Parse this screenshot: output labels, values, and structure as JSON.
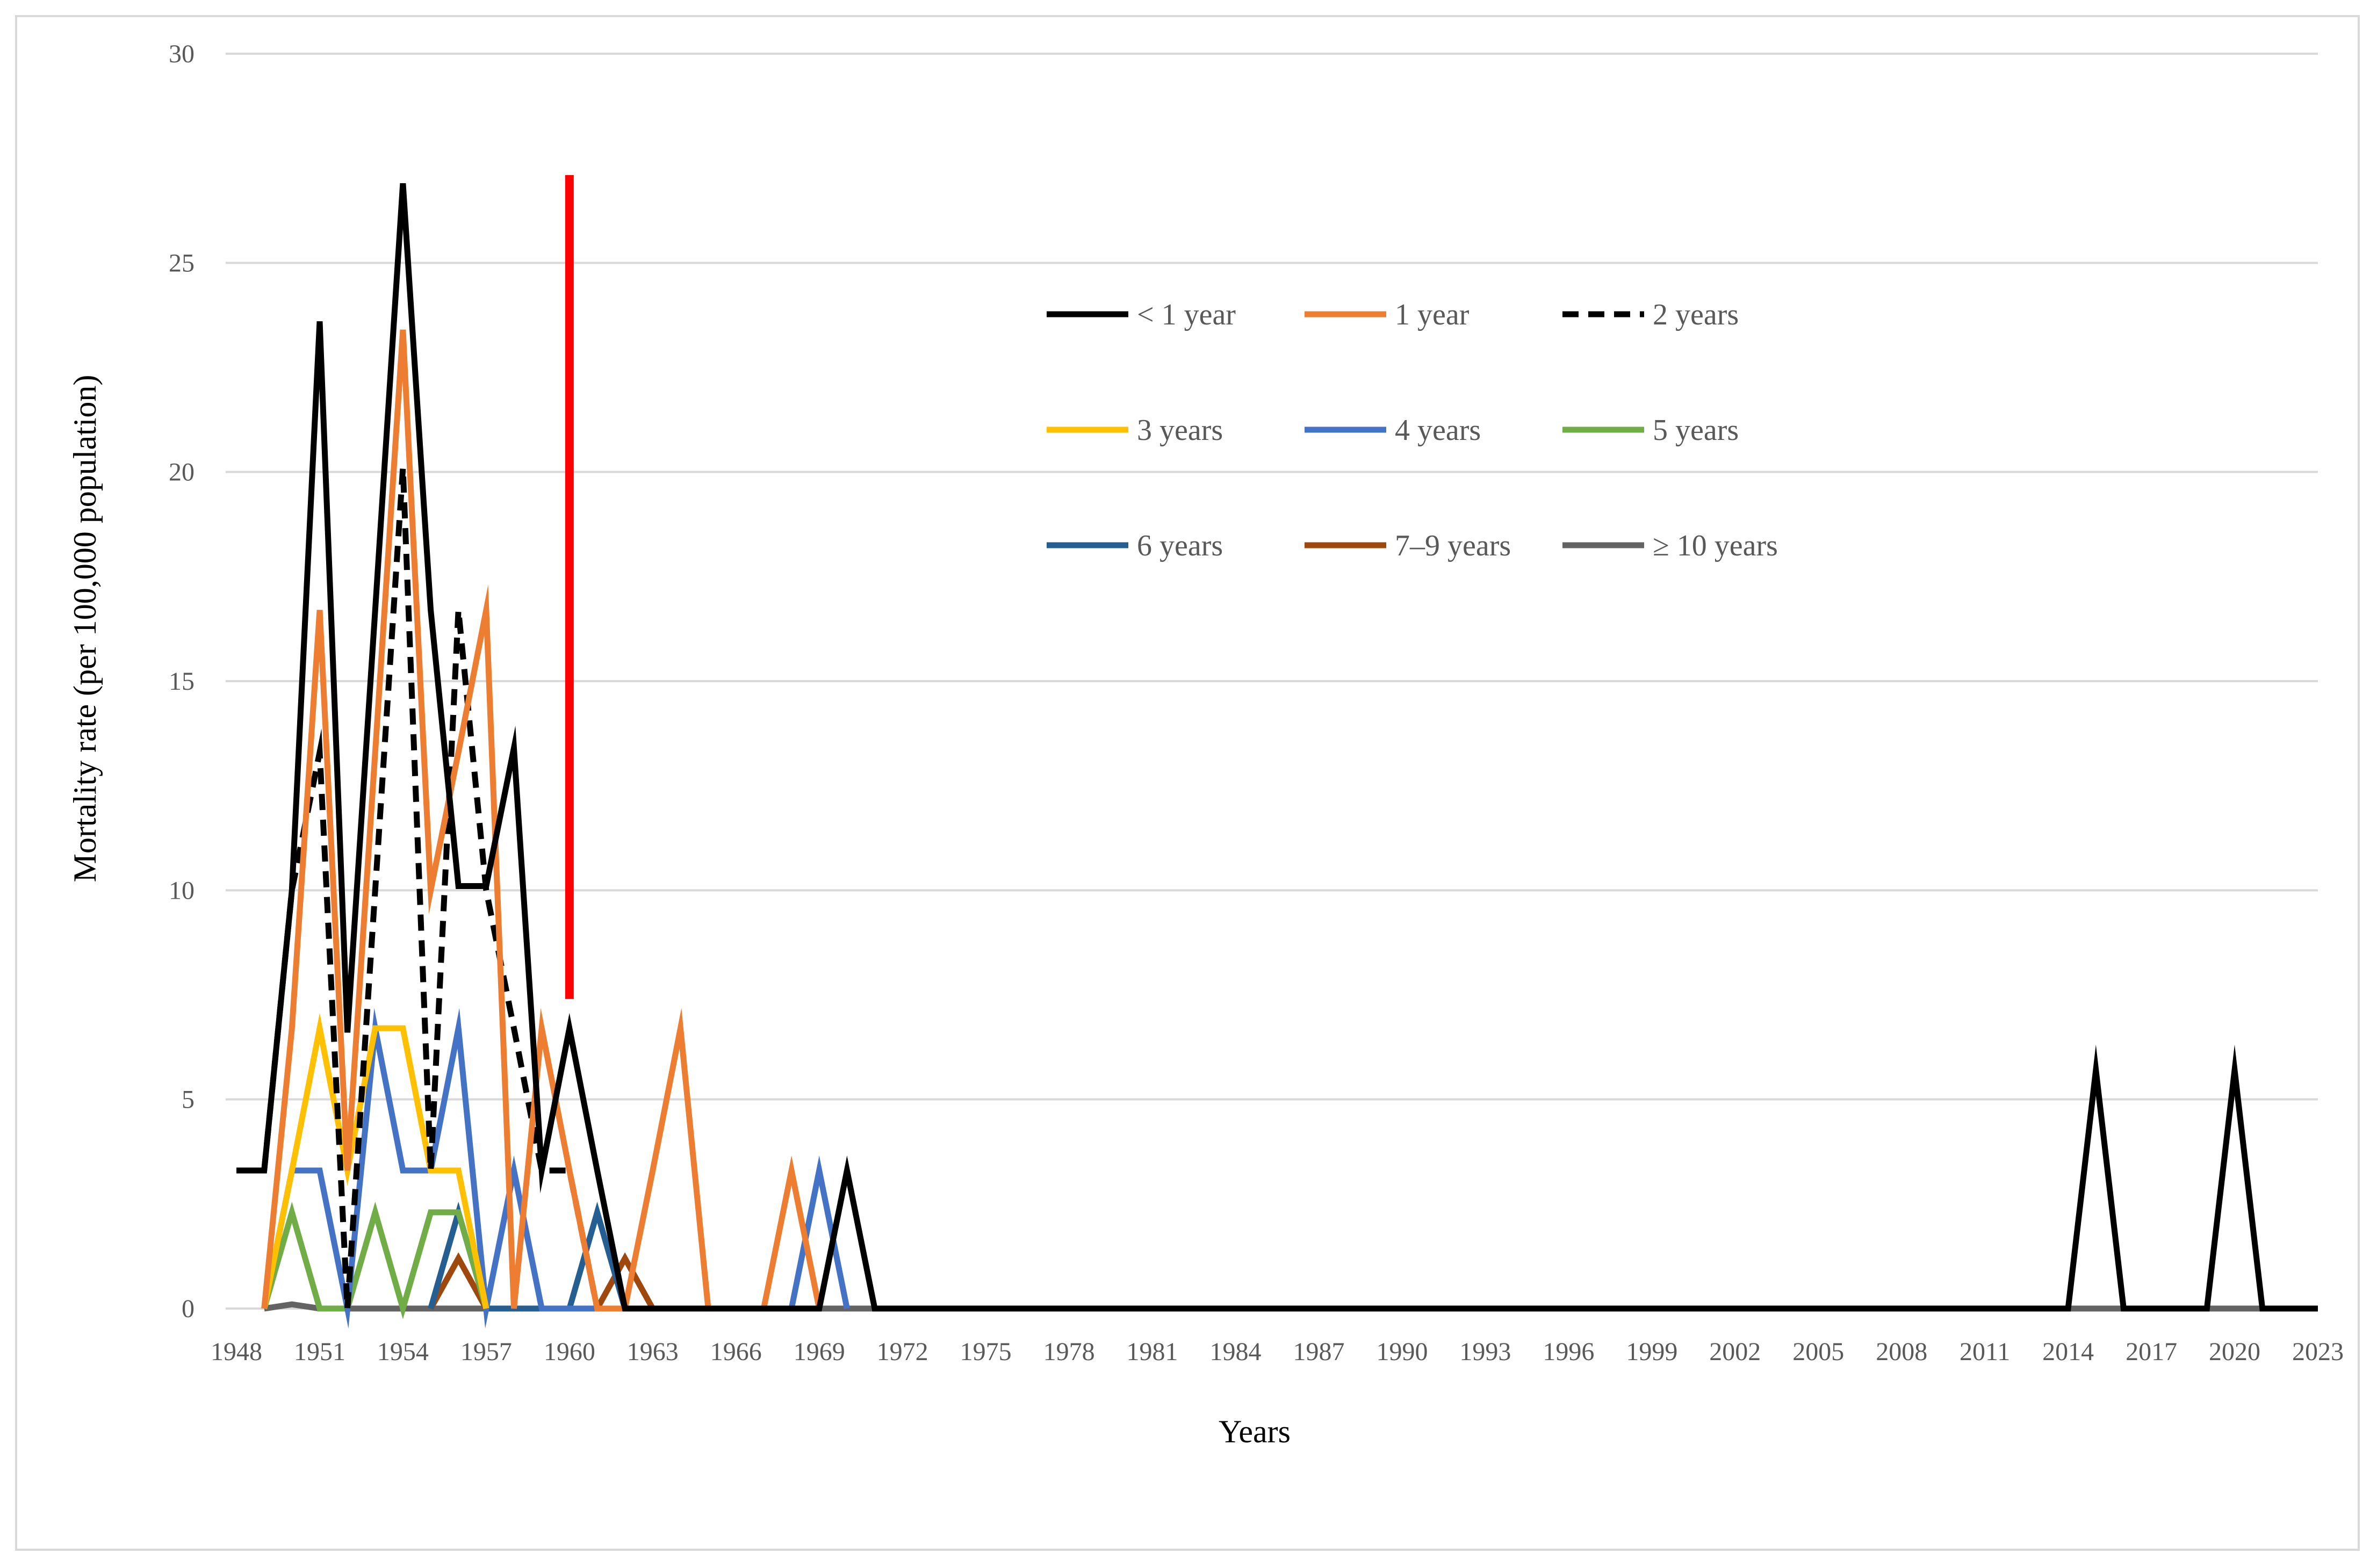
{
  "chart_data": {
    "type": "line",
    "title": "",
    "xlabel": "Years",
    "ylabel": "Mortality rate (per 100,000 population)",
    "ylim": [
      0,
      30
    ],
    "xlim": [
      1948,
      2023
    ],
    "yticks": [
      "0",
      "5",
      "10",
      "15",
      "20",
      "25",
      "30"
    ],
    "xticks": [
      "1948",
      "1951",
      "1954",
      "1957",
      "1960",
      "1963",
      "1966",
      "1969",
      "1972",
      "1975",
      "1978",
      "1981",
      "1984",
      "1987",
      "1990",
      "1993",
      "1996",
      "1999",
      "2002",
      "2005",
      "2008",
      "2011",
      "2014",
      "2017",
      "2020",
      "2023"
    ],
    "grid": "horizontal",
    "legend_position": "top-center",
    "annotation": {
      "type": "vertical-line",
      "x": 1960,
      "y_range": [
        7.4,
        27.1
      ],
      "color": "#ff0000"
    },
    "series": [
      {
        "name": "< 1 year",
        "color": "#000000",
        "dash": false,
        "points": [
          [
            1948,
            3.3
          ],
          [
            1949,
            3.3
          ],
          [
            1950,
            10.0
          ],
          [
            1951,
            23.6
          ],
          [
            1952,
            6.6
          ],
          [
            1953,
            16.7
          ],
          [
            1954,
            26.9
          ],
          [
            1955,
            16.7
          ],
          [
            1956,
            10.1
          ],
          [
            1957,
            10.1
          ],
          [
            1958,
            13.4
          ],
          [
            1959,
            3.3
          ],
          [
            1960,
            6.7
          ],
          [
            1961,
            3.3
          ],
          [
            1962,
            0
          ],
          [
            1968,
            0
          ],
          [
            1969,
            0
          ],
          [
            1970,
            3.3
          ],
          [
            1971,
            0
          ],
          [
            2014,
            0
          ],
          [
            2015,
            5.7
          ],
          [
            2016,
            0
          ],
          [
            2019,
            0
          ],
          [
            2020,
            5.7
          ],
          [
            2021,
            0
          ],
          [
            2023,
            0
          ]
        ]
      },
      {
        "name": "1 year",
        "color": "#ed7d31",
        "dash": false,
        "points": [
          [
            1949,
            0
          ],
          [
            1950,
            6.7
          ],
          [
            1951,
            16.7
          ],
          [
            1952,
            3.3
          ],
          [
            1953,
            13.3
          ],
          [
            1954,
            23.4
          ],
          [
            1955,
            10.0
          ],
          [
            1956,
            13.3
          ],
          [
            1957,
            16.7
          ],
          [
            1958,
            0
          ],
          [
            1959,
            6.7
          ],
          [
            1960,
            3.3
          ],
          [
            1961,
            0
          ],
          [
            1962,
            0
          ],
          [
            1963,
            3.3
          ],
          [
            1964,
            6.7
          ],
          [
            1965,
            0
          ],
          [
            1967,
            0
          ],
          [
            1968,
            3.3
          ],
          [
            1969,
            0
          ]
        ]
      },
      {
        "name": "2 years",
        "color": "#000000",
        "dash": true,
        "points": [
          [
            1949,
            3.3
          ],
          [
            1950,
            10.0
          ],
          [
            1951,
            13.3
          ],
          [
            1952,
            0
          ],
          [
            1953,
            10.0
          ],
          [
            1954,
            20.1
          ],
          [
            1955,
            3.3
          ],
          [
            1956,
            16.7
          ],
          [
            1957,
            10.0
          ],
          [
            1958,
            6.7
          ],
          [
            1959,
            3.3
          ],
          [
            1960,
            3.3
          ],
          [
            1961,
            0
          ]
        ]
      },
      {
        "name": "3 years",
        "color": "#ffc000",
        "dash": false,
        "points": [
          [
            1949,
            0
          ],
          [
            1950,
            3.3
          ],
          [
            1951,
            6.7
          ],
          [
            1952,
            3.3
          ],
          [
            1953,
            6.7
          ],
          [
            1954,
            6.7
          ],
          [
            1955,
            3.3
          ],
          [
            1956,
            3.3
          ],
          [
            1957,
            0
          ]
        ]
      },
      {
        "name": "4 years",
        "color": "#4472c4",
        "dash": false,
        "points": [
          [
            1949,
            0
          ],
          [
            1950,
            3.3
          ],
          [
            1951,
            3.3
          ],
          [
            1952,
            0
          ],
          [
            1953,
            6.7
          ],
          [
            1954,
            3.3
          ],
          [
            1955,
            3.3
          ],
          [
            1956,
            6.7
          ],
          [
            1957,
            0
          ],
          [
            1958,
            3.3
          ],
          [
            1959,
            0
          ],
          [
            1968,
            0
          ],
          [
            1969,
            3.3
          ],
          [
            1970,
            0
          ]
        ]
      },
      {
        "name": "5 years",
        "color": "#70ad47",
        "dash": false,
        "points": [
          [
            1949,
            0
          ],
          [
            1950,
            2.3
          ],
          [
            1951,
            0
          ],
          [
            1952,
            0
          ],
          [
            1953,
            2.3
          ],
          [
            1954,
            0
          ],
          [
            1955,
            2.3
          ],
          [
            1956,
            2.3
          ],
          [
            1957,
            0
          ]
        ]
      },
      {
        "name": "6 years",
        "color": "#255e91",
        "dash": false,
        "points": [
          [
            1955,
            0
          ],
          [
            1956,
            2.3
          ],
          [
            1957,
            0
          ],
          [
            1960,
            0
          ],
          [
            1961,
            2.3
          ],
          [
            1962,
            0
          ]
        ]
      },
      {
        "name": "7–9 years",
        "color": "#9e480e",
        "dash": false,
        "points": [
          [
            1955,
            0
          ],
          [
            1956,
            1.2
          ],
          [
            1957,
            0
          ],
          [
            1961,
            0
          ],
          [
            1962,
            1.2
          ],
          [
            1963,
            0
          ]
        ]
      },
      {
        "name": "≥ 10 years",
        "color": "#636363",
        "dash": false,
        "points": [
          [
            1949,
            0
          ],
          [
            1950,
            0.1
          ],
          [
            1951,
            0
          ],
          [
            2023,
            0
          ]
        ]
      }
    ]
  }
}
